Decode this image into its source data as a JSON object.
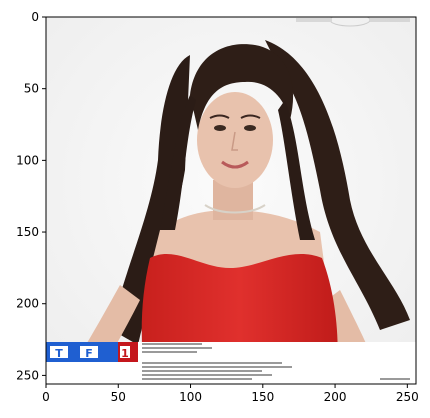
{
  "image": {
    "description_free": true,
    "xlim": [
      0,
      256
    ],
    "ylim": [
      256,
      0
    ],
    "x_ticks": [
      0,
      50,
      100,
      150,
      200,
      250
    ],
    "y_ticks": [
      0,
      50,
      100,
      150,
      200,
      250
    ],
    "banner": {
      "logo_letters": [
        "T",
        "F",
        "1"
      ]
    },
    "colors": {
      "background": "#f7f7f7",
      "dress": "#e0302d",
      "belt": "#1c1c1c",
      "hair": "#2b1c16",
      "skin": "#e8c2ad",
      "banner_blue": "#1f5fd1",
      "banner_red": "#c4161c"
    }
  }
}
